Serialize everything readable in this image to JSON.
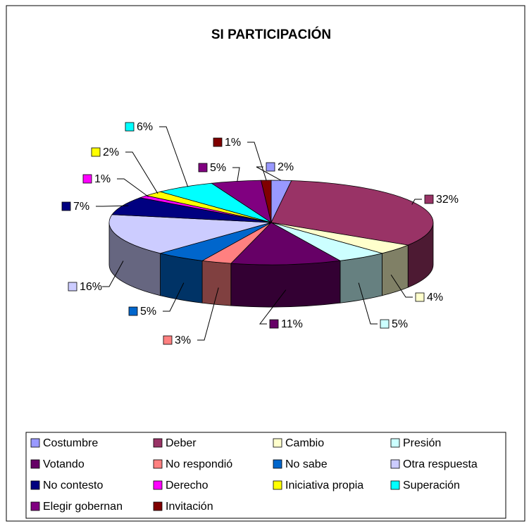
{
  "chart_data": {
    "type": "pie",
    "title": "SI PARTICIPACIÓN",
    "categories": [
      "Costumbre",
      "Deber",
      "Cambio",
      "Presión",
      "Votando",
      "No respondió",
      "No sabe",
      "Otra respuesta",
      "No contesto",
      "Derecho",
      "Iniciativa propia",
      "Superación",
      "Elegir gobernan",
      "Invitación"
    ],
    "values": [
      2,
      32,
      4,
      5,
      11,
      3,
      5,
      16,
      7,
      1,
      2,
      6,
      5,
      1
    ],
    "value_labels": [
      "2%",
      "32%",
      "4%",
      "5%",
      "11%",
      "3%",
      "5%",
      "16%",
      "7%",
      "1%",
      "2%",
      "6%",
      "5%",
      "1%"
    ],
    "colors": [
      "#9999ff",
      "#993366",
      "#ffffcc",
      "#ccffff",
      "#660066",
      "#ff8080",
      "#0066cc",
      "#ccccff",
      "#000080",
      "#ff00ff",
      "#ffff00",
      "#00ffff",
      "#800080",
      "#800000"
    ],
    "legend": "bottom"
  }
}
